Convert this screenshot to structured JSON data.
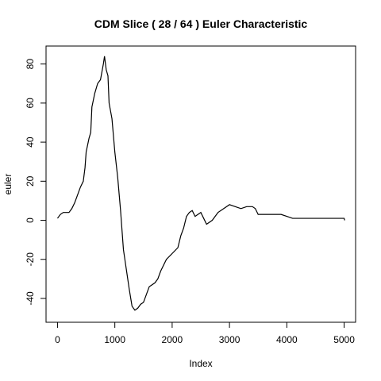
{
  "chart_data": {
    "type": "line",
    "title": "CDM Slice ( 28 / 64 ) Euler Characteristic",
    "x_label": "Index",
    "y_label": "euler",
    "x": [
      0,
      50,
      100,
      200,
      250,
      300,
      350,
      400,
      450,
      480,
      500,
      550,
      580,
      600,
      650,
      700,
      750,
      800,
      820,
      850,
      880,
      900,
      950,
      1000,
      1050,
      1100,
      1150,
      1200,
      1250,
      1300,
      1350,
      1400,
      1450,
      1500,
      1550,
      1600,
      1700,
      1750,
      1800,
      1900,
      2000,
      2100,
      2150,
      2200,
      2250,
      2300,
      2350,
      2400,
      2450,
      2500,
      2550,
      2600,
      2700,
      2800,
      2900,
      3000,
      3100,
      3200,
      3300,
      3400,
      3450,
      3500,
      3600,
      3700,
      3900,
      4000,
      4100,
      4500,
      5000,
      5010
    ],
    "series": [
      {
        "name": "euler",
        "color": "#000000",
        "values": [
          1,
          3,
          4,
          4,
          6,
          9,
          13,
          17,
          20,
          27,
          35,
          42,
          45,
          58,
          65,
          70,
          72,
          80,
          84,
          77,
          74,
          60,
          52,
          35,
          22,
          5,
          -15,
          -25,
          -35,
          -44,
          -46,
          -45,
          -43,
          -42,
          -38,
          -34,
          -32,
          -30,
          -26,
          -20,
          -17,
          -14,
          -8,
          -4,
          2,
          4,
          5,
          2,
          3,
          4,
          1,
          -2,
          0,
          4,
          6,
          8,
          7,
          6,
          7,
          7,
          6,
          3,
          3,
          3,
          3,
          2,
          1,
          1,
          1,
          0
        ]
      }
    ],
    "xlim": [
      -200,
      5200
    ],
    "ylim": [
      -52.2,
      89.2
    ],
    "xticks": [
      0,
      1000,
      2000,
      3000,
      4000,
      5000
    ],
    "yticks": [
      -40,
      -20,
      0,
      20,
      40,
      60,
      80
    ]
  }
}
